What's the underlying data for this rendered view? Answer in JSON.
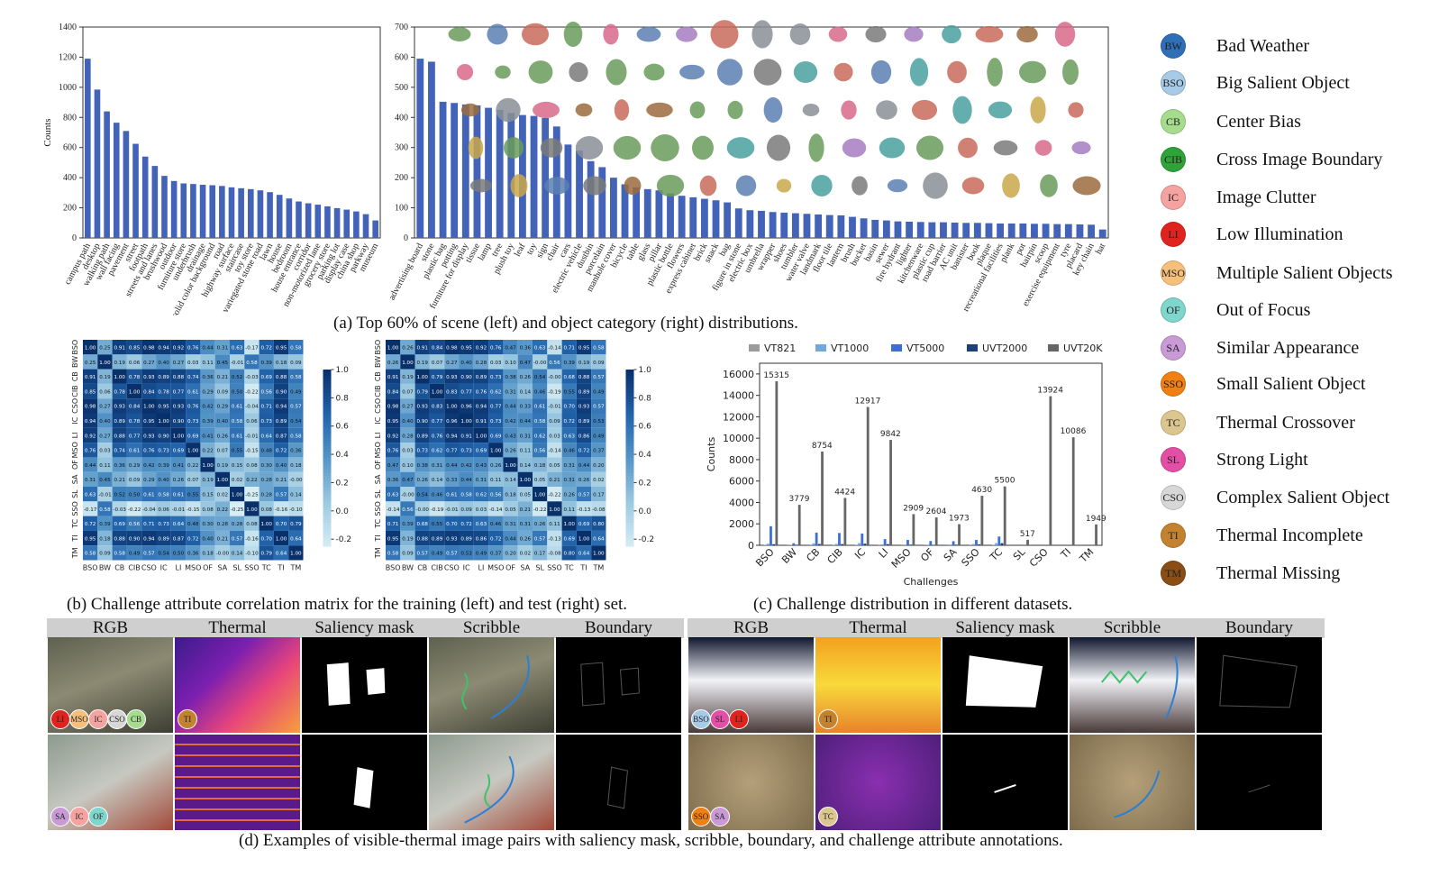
{
  "colors": {
    "bar_blue": "#4263b8",
    "heat_low": "#c9e6ef",
    "heat_high": "#08306b"
  },
  "captions": {
    "a": "(a) Top 60% of scene (left) and object category (right) distributions.",
    "b": "(b) Challenge attribute correlation matrix for the training (left) and test (right) set.",
    "c": "(c) Challenge distribution in different datasets.",
    "d": "(d) Examples of visible-thermal image pairs with saliency mask, scribble, boundary, and challenge attribute annotations."
  },
  "legend": [
    {
      "abbr": "BW",
      "label": "Bad Weather",
      "color": "#2e6fb8"
    },
    {
      "abbr": "BSO",
      "label": "Big Salient Object",
      "color": "#a7cbe6"
    },
    {
      "abbr": "CB",
      "label": "Center Bias",
      "color": "#a6dc8e"
    },
    {
      "abbr": "CIB",
      "label": "Cross Image Boundary",
      "color": "#2ea33a"
    },
    {
      "abbr": "IC",
      "label": "Image Clutter",
      "color": "#f5a3a0"
    },
    {
      "abbr": "LI",
      "label": "Low Illumination",
      "color": "#e0231f"
    },
    {
      "abbr": "MSO",
      "label": "Multiple Salient Objects",
      "color": "#f7bf7c"
    },
    {
      "abbr": "OF",
      "label": "Out of Focus",
      "color": "#7fd6cc"
    },
    {
      "abbr": "SA",
      "label": "Similar Appearance",
      "color": "#c99ad6"
    },
    {
      "abbr": "SSO",
      "label": "Small Salient Object",
      "color": "#f07f14"
    },
    {
      "abbr": "TC",
      "label": "Thermal Crossover",
      "color": "#dcc68f"
    },
    {
      "abbr": "SL",
      "label": "Strong Light",
      "color": "#e34fa6"
    },
    {
      "abbr": "CSO",
      "label": "Complex Salient Object",
      "color": "#d7d7d7"
    },
    {
      "abbr": "TI",
      "label": "Thermal Incomplete",
      "color": "#c3822f"
    },
    {
      "abbr": "TM",
      "label": "Thermal Missing",
      "color": "#8a4d14"
    }
  ],
  "chart_data": [
    {
      "type": "bar",
      "panel": "a-left",
      "ylabel": "Counts",
      "ylim": [
        0,
        1400
      ],
      "yticks": [
        "0",
        "200",
        "400",
        "600",
        "800",
        "1000",
        "1200",
        "1400"
      ],
      "categories": [
        "campus path",
        "desktop",
        "walking path",
        "wall facing",
        "pavement",
        "street",
        "footpath",
        "streets and lanes",
        "brushwood",
        "outdoor",
        "furniture store",
        "underbrush",
        "drainage",
        "solid color background",
        "road",
        "highway surface",
        "staircase",
        "toy store",
        "variegated stone road",
        "lawn",
        "house",
        "bedroom",
        "house entrance",
        "corridor",
        "non-motorized lane",
        "grocery store",
        "parking lot",
        "display case",
        "china shop",
        "parkway",
        "museum"
      ],
      "values": [
        1190,
        985,
        840,
        765,
        710,
        625,
        540,
        478,
        412,
        378,
        362,
        358,
        353,
        350,
        345,
        336,
        330,
        324,
        316,
        304,
        286,
        262,
        242,
        230,
        221,
        210,
        198,
        188,
        176,
        158,
        116
      ]
    },
    {
      "type": "bar",
      "panel": "a-right",
      "ylim": [
        0,
        700
      ],
      "yticks": [
        "0",
        "100",
        "200",
        "300",
        "400",
        "500",
        "600",
        "700"
      ],
      "categories": [
        "advertising board",
        "stone",
        "plastic bag",
        "potting",
        "furniture for display",
        "tissue",
        "lamp",
        "tree",
        "plush toy",
        "leaf",
        "toy",
        "sign",
        "chair",
        "cars",
        "electric vehicle",
        "dustbin",
        "porcelain",
        "manhole cover",
        "bicycle",
        "table",
        "glass",
        "pillar",
        "plastic bottle",
        "flowers",
        "express cabinet",
        "brick",
        "snack",
        "bag",
        "figure in stone",
        "electric box",
        "umbrella",
        "wrapper",
        "shoes",
        "tumbler",
        "water valve",
        "landmark",
        "floor tile",
        "lantern",
        "brush",
        "bucket",
        "basin",
        "sewer",
        "fire hydrant",
        "lighter",
        "kitchenware",
        "plastic cup",
        "road barrier",
        "AC unit",
        "banister",
        "book",
        "plaque",
        "recreational facilities",
        "plank",
        "pot",
        "hairpin",
        "scoop",
        "exercise equipment",
        "tyre",
        "placard",
        "key chain",
        "hat"
      ],
      "values": [
        595,
        585,
        452,
        448,
        443,
        440,
        432,
        425,
        415,
        408,
        405,
        398,
        370,
        310,
        290,
        255,
        235,
        200,
        178,
        168,
        162,
        158,
        148,
        140,
        135,
        130,
        125,
        118,
        98,
        92,
        90,
        86,
        84,
        82,
        80,
        78,
        76,
        75,
        70,
        65,
        60,
        58,
        55,
        54,
        53,
        52,
        52,
        51,
        50,
        50,
        49,
        48,
        48,
        48,
        47,
        47,
        46,
        46,
        45,
        44,
        28
      ]
    },
    {
      "type": "heatmap",
      "panel": "b-left",
      "labels": [
        "BSO",
        "BW",
        "CB",
        "CIB",
        "CSO",
        "IC",
        "LI",
        "MSO",
        "OF",
        "SA",
        "SL",
        "SSO",
        "TC",
        "TI",
        "TM"
      ],
      "colorbar_ticks": [
        "1.0",
        "0.8",
        "0.6",
        "0.4",
        "0.2",
        "0.0",
        "-0.2"
      ],
      "vmin": -0.25,
      "vmax": 1.0,
      "matrix": [
        [
          "1.00",
          "0.25",
          "0.91",
          "0.85",
          "0.98",
          "0.94",
          "0.92",
          "0.76",
          "0.44",
          "0.31",
          "0.63",
          "-0.17",
          "0.72",
          "0.95",
          "0.58"
        ],
        [
          "0.25",
          "1.00",
          "0.19",
          "0.06",
          "0.27",
          "0.40",
          "0.27",
          "0.03",
          "0.11",
          "0.45",
          "-0.01",
          "0.58",
          "0.39",
          "0.18",
          "0.09"
        ],
        [
          "0.91",
          "0.19",
          "1.00",
          "0.78",
          "0.93",
          "0.89",
          "0.88",
          "0.74",
          "0.36",
          "0.21",
          "0.52",
          "-0.03",
          "0.69",
          "0.88",
          "0.58"
        ],
        [
          "0.85",
          "0.06",
          "0.78",
          "1.00",
          "0.84",
          "0.78",
          "0.77",
          "0.61",
          "0.29",
          "0.09",
          "0.50",
          "-0.22",
          "0.56",
          "0.90",
          "0.49"
        ],
        [
          "0.98",
          "0.27",
          "0.93",
          "0.84",
          "1.00",
          "0.95",
          "0.93",
          "0.76",
          "0.42",
          "0.29",
          "0.61",
          "-0.04",
          "0.71",
          "0.94",
          "0.57"
        ],
        [
          "0.94",
          "0.40",
          "0.89",
          "0.78",
          "0.95",
          "1.00",
          "0.90",
          "0.73",
          "0.39",
          "0.40",
          "0.58",
          "0.06",
          "0.73",
          "0.89",
          "0.54"
        ],
        [
          "0.92",
          "0.27",
          "0.88",
          "0.77",
          "0.93",
          "0.90",
          "1.00",
          "0.69",
          "0.41",
          "0.26",
          "0.61",
          "-0.01",
          "0.64",
          "0.87",
          "0.58"
        ],
        [
          "0.76",
          "0.03",
          "0.74",
          "0.61",
          "0.76",
          "0.73",
          "0.69",
          "1.00",
          "0.22",
          "0.07",
          "0.55",
          "-0.15",
          "0.48",
          "0.72",
          "0.36"
        ],
        [
          "0.44",
          "0.11",
          "0.36",
          "0.29",
          "0.42",
          "0.39",
          "0.41",
          "0.22",
          "1.00",
          "0.19",
          "0.15",
          "0.08",
          "0.30",
          "0.40",
          "0.18"
        ],
        [
          "0.31",
          "0.45",
          "0.21",
          "0.09",
          "0.29",
          "0.40",
          "0.26",
          "0.07",
          "0.19",
          "1.00",
          "0.02",
          "0.22",
          "0.28",
          "0.21",
          "-0.00"
        ],
        [
          "0.63",
          "-0.01",
          "0.52",
          "0.50",
          "0.61",
          "0.58",
          "0.61",
          "0.55",
          "0.15",
          "0.02",
          "1.00",
          "-0.25",
          "0.28",
          "0.57",
          "0.14"
        ],
        [
          "-0.17",
          "0.58",
          "-0.03",
          "-0.22",
          "-0.04",
          "0.06",
          "-0.01",
          "-0.15",
          "0.08",
          "0.22",
          "-0.25",
          "1.00",
          "0.08",
          "-0.16",
          "-0.10"
        ],
        [
          "0.72",
          "0.39",
          "0.69",
          "0.56",
          "0.71",
          "0.73",
          "0.64",
          "0.48",
          "0.30",
          "0.28",
          "0.28",
          "0.08",
          "1.00",
          "0.70",
          "0.79"
        ],
        [
          "0.95",
          "0.18",
          "0.88",
          "0.90",
          "0.94",
          "0.89",
          "0.87",
          "0.72",
          "0.40",
          "0.21",
          "0.57",
          "-0.16",
          "0.70",
          "1.00",
          "0.64"
        ],
        [
          "0.58",
          "0.09",
          "0.58",
          "0.49",
          "0.57",
          "0.54",
          "0.50",
          "0.36",
          "0.18",
          "-0.00",
          "0.14",
          "-0.10",
          "0.79",
          "0.64",
          "1.00"
        ]
      ]
    },
    {
      "type": "heatmap",
      "panel": "b-right",
      "labels": [
        "BSO",
        "BW",
        "CB",
        "CIB",
        "CSO",
        "IC",
        "LI",
        "MSO",
        "OF",
        "SA",
        "SL",
        "SSO",
        "TC",
        "TI",
        "TM"
      ],
      "colorbar_ticks": [
        "1.0",
        "0.8",
        "0.6",
        "0.4",
        "0.2",
        "0.0",
        "-0.2"
      ],
      "vmin": -0.25,
      "vmax": 1.0,
      "matrix": [
        [
          "1.00",
          "0.26",
          "0.91",
          "0.84",
          "0.98",
          "0.95",
          "0.92",
          "0.76",
          "0.47",
          "0.36",
          "0.63",
          "-0.14",
          "0.71",
          "0.95",
          "0.58"
        ],
        [
          "0.26",
          "1.00",
          "0.19",
          "0.07",
          "0.27",
          "0.40",
          "0.28",
          "0.03",
          "0.10",
          "0.47",
          "-0.00",
          "0.56",
          "0.39",
          "0.19",
          "0.09"
        ],
        [
          "0.91",
          "0.19",
          "1.00",
          "0.79",
          "0.93",
          "0.90",
          "0.89",
          "0.73",
          "0.38",
          "0.26",
          "0.54",
          "-0.00",
          "0.68",
          "0.88",
          "0.57"
        ],
        [
          "0.84",
          "0.07",
          "0.79",
          "1.00",
          "0.83",
          "0.77",
          "0.76",
          "0.62",
          "0.31",
          "0.14",
          "0.46",
          "-0.19",
          "0.55",
          "0.89",
          "0.49"
        ],
        [
          "0.98",
          "0.27",
          "0.93",
          "0.83",
          "1.00",
          "0.96",
          "0.94",
          "0.77",
          "0.44",
          "0.33",
          "0.61",
          "-0.01",
          "0.70",
          "0.93",
          "0.57"
        ],
        [
          "0.95",
          "0.40",
          "0.90",
          "0.77",
          "0.96",
          "1.00",
          "0.91",
          "0.73",
          "0.42",
          "0.44",
          "0.58",
          "0.09",
          "0.72",
          "0.89",
          "0.53"
        ],
        [
          "0.92",
          "0.28",
          "0.89",
          "0.76",
          "0.94",
          "0.91",
          "1.00",
          "0.69",
          "0.43",
          "0.31",
          "0.62",
          "0.03",
          "0.63",
          "0.86",
          "0.49"
        ],
        [
          "0.76",
          "0.03",
          "0.73",
          "0.62",
          "0.77",
          "0.73",
          "0.69",
          "1.00",
          "0.26",
          "0.11",
          "0.56",
          "-0.14",
          "0.46",
          "0.72",
          "0.37"
        ],
        [
          "0.47",
          "0.10",
          "0.38",
          "0.31",
          "0.44",
          "0.42",
          "0.43",
          "0.26",
          "1.00",
          "0.14",
          "0.18",
          "0.05",
          "0.31",
          "0.44",
          "0.20"
        ],
        [
          "0.36",
          "0.47",
          "0.26",
          "0.14",
          "0.33",
          "0.44",
          "0.31",
          "0.11",
          "0.14",
          "1.00",
          "0.05",
          "0.21",
          "0.31",
          "0.26",
          "0.02"
        ],
        [
          "0.63",
          "-0.00",
          "0.54",
          "0.46",
          "0.61",
          "0.58",
          "0.62",
          "0.56",
          "0.18",
          "0.05",
          "1.00",
          "-0.22",
          "0.26",
          "0.57",
          "0.17"
        ],
        [
          "-0.14",
          "0.56",
          "-0.00",
          "-0.19",
          "-0.01",
          "0.09",
          "0.03",
          "-0.14",
          "0.05",
          "0.21",
          "-0.22",
          "1.00",
          "0.11",
          "-0.13",
          "-0.08"
        ],
        [
          "0.71",
          "0.39",
          "0.68",
          "0.55",
          "0.70",
          "0.72",
          "0.63",
          "0.46",
          "0.31",
          "0.31",
          "0.26",
          "0.11",
          "1.00",
          "0.69",
          "0.80"
        ],
        [
          "0.95",
          "0.19",
          "0.88",
          "0.89",
          "0.93",
          "0.89",
          "0.86",
          "0.72",
          "0.44",
          "0.26",
          "0.57",
          "-0.13",
          "0.69",
          "1.00",
          "0.64"
        ],
        [
          "0.58",
          "0.09",
          "0.57",
          "0.49",
          "0.57",
          "0.53",
          "0.49",
          "0.37",
          "0.20",
          "0.02",
          "0.17",
          "-0.08",
          "0.80",
          "0.64",
          "1.00"
        ]
      ]
    },
    {
      "type": "bar",
      "panel": "c",
      "xlabel": "Challenges",
      "ylabel": "Counts",
      "ylim": [
        0,
        17000
      ],
      "yticks": [
        "0",
        "2000",
        "4000",
        "6000",
        "8000",
        "10000",
        "12000",
        "14000",
        "16000"
      ],
      "categories": [
        "BSO",
        "BW",
        "CB",
        "CIB",
        "IC",
        "LI",
        "MSO",
        "OF",
        "SA",
        "SSO",
        "TC",
        "SL",
        "CSO",
        "TI",
        "TM"
      ],
      "series": [
        {
          "name": "VT821",
          "color": "#9b9b9b",
          "values": [
            40,
            20,
            60,
            40,
            50,
            30,
            20,
            20,
            20,
            60,
            40,
            0,
            0,
            0,
            0
          ]
        },
        {
          "name": "VT1000",
          "color": "#6fa8dc",
          "values": [
            150,
            40,
            180,
            130,
            200,
            80,
            60,
            50,
            60,
            120,
            200,
            0,
            0,
            0,
            0
          ]
        },
        {
          "name": "VT5000",
          "color": "#3d6fd0",
          "values": [
            1780,
            190,
            1180,
            1150,
            1100,
            580,
            500,
            400,
            380,
            500,
            820,
            10,
            0,
            0,
            0
          ]
        },
        {
          "name": "UVT2000",
          "color": "#1f3f7a",
          "values": [
            100,
            50,
            120,
            110,
            150,
            110,
            60,
            40,
            60,
            90,
            200,
            0,
            0,
            0,
            0
          ]
        },
        {
          "name": "UVT20K",
          "color": "#666666",
          "values": [
            15315,
            3779,
            8754,
            4424,
            12917,
            9842,
            2909,
            2604,
            1973,
            4630,
            5500,
            517,
            13924,
            10086,
            1949
          ]
        }
      ],
      "data_labels": [
        "15315",
        "3779",
        "8754",
        "4424",
        "12917",
        "9842",
        "2909",
        "2604",
        "1973",
        "4630",
        "5500",
        "517",
        "13924",
        "10086",
        "1949"
      ]
    }
  ],
  "panel_d": {
    "columns": [
      "RGB",
      "Thermal",
      "Saliency mask",
      "Scribble",
      "Boundary"
    ],
    "examples": [
      {
        "row": 0,
        "side": "left",
        "rgb_badges": [
          "LI",
          "MSO",
          "IC",
          "CSO",
          "CB"
        ],
        "thermal_badges": [
          "TI"
        ]
      },
      {
        "row": 0,
        "side": "right",
        "rgb_badges": [
          "BSO",
          "SL",
          "LI"
        ],
        "thermal_badges": [
          "TI"
        ]
      },
      {
        "row": 1,
        "side": "left",
        "rgb_badges": [
          "SA",
          "IC",
          "OF"
        ],
        "thermal_badges": []
      },
      {
        "row": 1,
        "side": "right",
        "rgb_badges": [
          "SSO",
          "SA"
        ],
        "thermal_badges": [
          "TC"
        ]
      }
    ]
  }
}
